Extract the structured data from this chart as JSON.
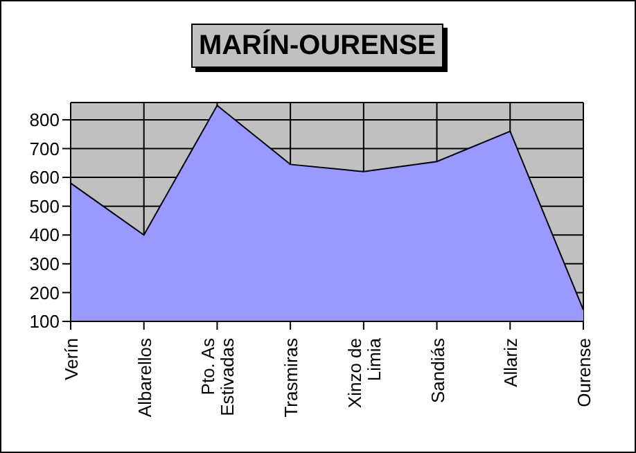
{
  "chart_data": {
    "type": "area",
    "title": "MARÍN-OURENSE",
    "categories": [
      "Verín",
      "Albarellos",
      "Pto. As Estivadas",
      "Trasmiras",
      "Xinzo de Limia",
      "Sandiás",
      "Allariz",
      "Ourense"
    ],
    "series": [
      {
        "color": "#9999ff",
        "values": [
          580,
          400,
          850,
          645,
          620,
          655,
          760,
          140
        ]
      }
    ],
    "ylim": [
      100,
      860
    ],
    "yticks": [
      100,
      200,
      300,
      400,
      500,
      600,
      700,
      800
    ],
    "grid": true,
    "legend": false
  }
}
